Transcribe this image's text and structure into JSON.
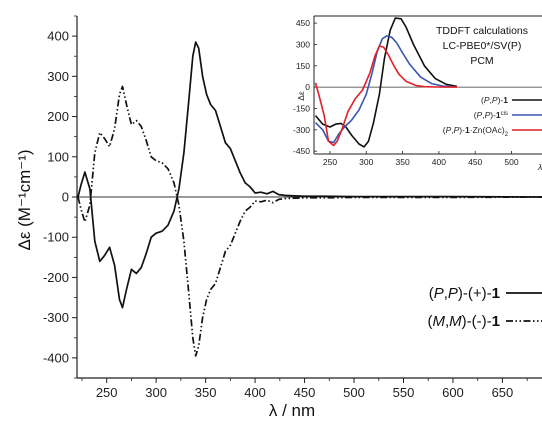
{
  "chart_data": [
    {
      "type": "line",
      "title": "",
      "xlabel": "λ / nm",
      "ylabel": "Δε (M⁻¹cm⁻¹)",
      "xlim": [
        220,
        690
      ],
      "ylim": [
        -450,
        450
      ],
      "x_ticks": [
        250,
        300,
        350,
        400,
        450,
        500,
        550,
        600,
        650
      ],
      "y_ticks": [
        -400,
        -300,
        -200,
        -100,
        0,
        100,
        200,
        300,
        400
      ],
      "grid": false,
      "legend_position": "bottom-right",
      "series": [
        {
          "name": "(P,P)-(+)-1",
          "color": "#111111",
          "style": "solid",
          "x": [
            221,
            224,
            228,
            233,
            238,
            243,
            248,
            253,
            258,
            263,
            266,
            270,
            275,
            280,
            285,
            290,
            295,
            300,
            306,
            312,
            318,
            323,
            328,
            333,
            337,
            340,
            343,
            347,
            351,
            355,
            360,
            365,
            370,
            375,
            380,
            385,
            390,
            395,
            400,
            406,
            412,
            418,
            424,
            430,
            440,
            450,
            470,
            500,
            550,
            600,
            690
          ],
          "y": [
            0,
            30,
            62,
            20,
            -110,
            -160,
            -145,
            -125,
            -170,
            -255,
            -275,
            -230,
            -180,
            -190,
            -175,
            -140,
            -100,
            -90,
            -85,
            -70,
            -35,
            20,
            110,
            240,
            350,
            385,
            370,
            300,
            255,
            230,
            215,
            175,
            135,
            120,
            90,
            60,
            35,
            25,
            10,
            12,
            8,
            14,
            6,
            4,
            3,
            2,
            2,
            1,
            1,
            1,
            0
          ]
        },
        {
          "name": "(M,M)-(-)-1",
          "color": "#111111",
          "style": "dash-dot",
          "x": [
            221,
            224,
            228,
            233,
            238,
            243,
            248,
            253,
            258,
            263,
            266,
            270,
            275,
            280,
            285,
            290,
            295,
            300,
            306,
            312,
            318,
            323,
            328,
            333,
            337,
            340,
            343,
            347,
            351,
            355,
            360,
            365,
            370,
            375,
            380,
            385,
            390,
            395,
            400,
            406,
            412,
            418,
            424,
            430,
            440,
            450,
            470,
            500,
            550,
            600,
            690
          ],
          "y": [
            0,
            -30,
            -62,
            -20,
            110,
            160,
            145,
            125,
            170,
            255,
            275,
            230,
            180,
            190,
            175,
            140,
            100,
            90,
            85,
            70,
            35,
            -20,
            -110,
            -240,
            -350,
            -395,
            -370,
            -300,
            -255,
            -230,
            -215,
            -175,
            -135,
            -120,
            -90,
            -60,
            -35,
            -25,
            -10,
            -12,
            -8,
            -14,
            -6,
            -4,
            -3,
            -2,
            -2,
            -1,
            -1,
            -1,
            0
          ]
        }
      ]
    },
    {
      "type": "line",
      "title": "",
      "annotation_lines": [
        "TDDFT calculations",
        "LC-PBE0*/SV(P)",
        "PCM"
      ],
      "xlabel": "λ",
      "ylabel": "Δε",
      "xlim": [
        228,
        542
      ],
      "ylim": [
        -470,
        500
      ],
      "x_ticks": [
        250,
        300,
        350,
        400,
        450,
        500
      ],
      "y_ticks": [
        -450,
        -300,
        -150,
        0,
        150,
        300,
        450
      ],
      "legend_position": "bottom-right",
      "series": [
        {
          "name_parts": [
            {
              "t": "(",
              "style": "normal"
            },
            {
              "t": "P",
              "style": "italic"
            },
            {
              "t": ",",
              "style": "normal"
            },
            {
              "t": "P",
              "style": "italic"
            },
            {
              "t": ")-",
              "style": "normal"
            },
            {
              "t": "1",
              "style": "bold"
            }
          ],
          "color": "#111111",
          "x": [
            230,
            240,
            250,
            258,
            265,
            272,
            280,
            290,
            297,
            303,
            310,
            318,
            325,
            333,
            340,
            348,
            355,
            365,
            380,
            395,
            410,
            425
          ],
          "y": [
            -200,
            -260,
            -280,
            -260,
            -255,
            -280,
            -340,
            -400,
            -420,
            -380,
            -250,
            -50,
            200,
            400,
            485,
            480,
            420,
            300,
            150,
            60,
            20,
            5
          ]
        },
        {
          "name_parts": [
            {
              "t": "(",
              "style": "normal"
            },
            {
              "t": "P",
              "style": "italic"
            },
            {
              "t": ",",
              "style": "normal"
            },
            {
              "t": "P",
              "style": "italic"
            },
            {
              "t": ")-",
              "style": "normal"
            },
            {
              "t": "1",
              "style": "bold"
            },
            {
              "t": "cis",
              "style": "sup"
            }
          ],
          "color": "#3a56b0",
          "x": [
            230,
            240,
            248,
            255,
            262,
            270,
            280,
            290,
            300,
            308,
            315,
            322,
            328,
            335,
            342,
            350,
            360,
            375,
            390,
            405,
            420
          ],
          "y": [
            -250,
            -300,
            -380,
            -390,
            -330,
            -280,
            -230,
            -160,
            -50,
            100,
            250,
            340,
            360,
            350,
            310,
            240,
            160,
            70,
            25,
            8,
            2
          ]
        },
        {
          "name_parts": [
            {
              "t": "(",
              "style": "normal"
            },
            {
              "t": "P",
              "style": "italic"
            },
            {
              "t": ",",
              "style": "normal"
            },
            {
              "t": "P",
              "style": "italic"
            },
            {
              "t": ")-",
              "style": "normal"
            },
            {
              "t": "1",
              "style": "bold"
            },
            {
              "t": "·Zn(OAc)",
              "style": "normal"
            },
            {
              "t": "2",
              "style": "sub"
            }
          ],
          "color": "#e0202a",
          "x": [
            230,
            235,
            242,
            248,
            255,
            260,
            267,
            275,
            285,
            295,
            305,
            312,
            318,
            324,
            330,
            338,
            345,
            355,
            368,
            380,
            395,
            410,
            425
          ],
          "y": [
            30,
            -60,
            -200,
            -380,
            -410,
            -380,
            -290,
            -170,
            -80,
            -20,
            100,
            220,
            290,
            280,
            230,
            150,
            90,
            40,
            12,
            3,
            1,
            0,
            0
          ]
        }
      ]
    }
  ]
}
